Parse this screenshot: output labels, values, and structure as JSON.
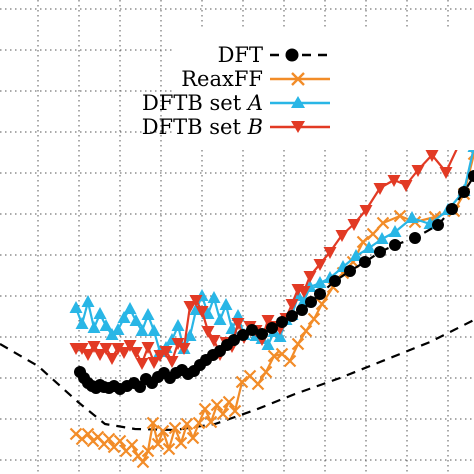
{
  "chart_data": {
    "type": "line",
    "title": "",
    "xlabel": "",
    "ylabel": "",
    "xlim": [
      0,
      47.4
    ],
    "ylim": [
      0,
      47.4
    ],
    "grid": true,
    "legend_position": "top-right",
    "series": [
      {
        "name": "DFT",
        "color": "#000000",
        "marker": "circle",
        "line_style": "dashed",
        "x": [
          8.0,
          8.4,
          8.8,
          9.2,
          9.6,
          10.0,
          10.4,
          10.9,
          11.4,
          12.0,
          12.7,
          13.4,
          14.0,
          14.6,
          15.2,
          15.8,
          16.4,
          17.0,
          17.6,
          18.2,
          18.8,
          19.4,
          20.0,
          20.6,
          21.3,
          22.0,
          22.7,
          23.4,
          24.3,
          25.2,
          26.2,
          27.2,
          28.2,
          29.2,
          30.2,
          31.1,
          32.0,
          33.5,
          35.0,
          36.5,
          38.0,
          39.5,
          41.5,
          43.8,
          45.2,
          46.4,
          47.4
        ],
        "y": [
          10.2,
          9.6,
          9.1,
          8.8,
          8.6,
          8.9,
          8.7,
          8.6,
          8.8,
          8.5,
          8.8,
          9.1,
          8.7,
          9.5,
          9.1,
          9.7,
          10.1,
          9.6,
          10.1,
          10.4,
          10.0,
          10.3,
          10.9,
          11.4,
          11.9,
          12.3,
          12.9,
          13.4,
          13.9,
          14.4,
          14.0,
          14.6,
          15.2,
          15.8,
          16.4,
          17.2,
          18.0,
          19.3,
          20.3,
          21.2,
          22.2,
          22.9,
          23.6,
          24.9,
          26.5,
          28.2,
          29.8
        ]
      },
      {
        "name": "ReaxFF",
        "color": "#f28c28",
        "marker": "x",
        "line_style": "solid",
        "x": [
          7.6,
          8.2,
          8.8,
          9.3,
          9.8,
          10.4,
          10.9,
          11.4,
          12.0,
          12.6,
          13.2,
          13.8,
          14.3,
          14.8,
          15.3,
          15.8,
          16.3,
          16.9,
          17.5,
          18.1,
          18.7,
          19.3,
          19.9,
          20.5,
          21.1,
          21.7,
          22.3,
          22.9,
          23.5,
          24.2,
          25.0,
          25.8,
          26.6,
          27.4,
          28.2,
          29.0,
          29.8,
          30.6,
          31.4,
          32.2,
          33.3,
          34.3,
          35.3,
          36.3,
          37.3,
          38.3,
          40.0,
          41.5,
          43.5,
          45.4,
          46.4,
          47.4
        ],
        "y": [
          4.0,
          3.5,
          4.0,
          3.3,
          3.7,
          3.0,
          3.5,
          2.7,
          3.3,
          2.3,
          2.9,
          1.8,
          1.2,
          2.3,
          5.1,
          3.0,
          4.3,
          2.5,
          4.6,
          3.1,
          5.0,
          3.6,
          5.1,
          6.5,
          5.2,
          6.9,
          6.0,
          7.2,
          6.3,
          9.2,
          9.8,
          9.0,
          10.2,
          11.8,
          12.0,
          11.3,
          13.0,
          14.3,
          15.5,
          17.0,
          18.7,
          20.1,
          21.2,
          23.2,
          24.0,
          25.1,
          25.8,
          25.2,
          25.7,
          26.3,
          28.0,
          32.0
        ]
      },
      {
        "name": "DFTB set A",
        "color": "#29b6e6",
        "marker": "triangle-up",
        "line_style": "solid",
        "x": [
          7.6,
          8.2,
          8.8,
          9.4,
          10.0,
          10.6,
          11.2,
          11.8,
          12.4,
          13.0,
          13.6,
          14.2,
          14.8,
          15.4,
          16.0,
          16.6,
          17.2,
          17.8,
          18.4,
          19.0,
          19.6,
          20.2,
          20.8,
          21.4,
          22.0,
          22.6,
          23.2,
          23.8,
          24.4,
          25.0,
          25.6,
          26.2,
          26.8,
          27.4,
          28.0,
          28.6,
          29.2,
          29.8,
          30.4,
          31.0,
          32.0,
          33.0,
          34.3,
          35.6,
          36.9,
          38.2,
          39.5,
          41.2,
          43.0,
          44.8,
          46.4,
          47.4
        ],
        "y": [
          16.6,
          15.0,
          17.2,
          14.6,
          16.0,
          14.8,
          13.9,
          14.4,
          15.6,
          16.5,
          15.3,
          14.3,
          15.9,
          14.3,
          12.2,
          12.6,
          13.4,
          14.8,
          12.5,
          13.8,
          16.4,
          17.8,
          16.0,
          17.6,
          15.4,
          16.9,
          14.5,
          15.8,
          13.9,
          14.5,
          13.8,
          13.5,
          12.9,
          14.2,
          13.7,
          15.4,
          15.9,
          17.8,
          17.3,
          18.7,
          19.1,
          19.6,
          20.7,
          21.8,
          22.6,
          23.5,
          24.2,
          25.6,
          25.0,
          26.4,
          28.3,
          32.7
        ]
      },
      {
        "name": "DFTB set B",
        "color": "#e23a24",
        "marker": "triangle-down",
        "line_style": "solid",
        "x": [
          7.6,
          8.2,
          8.8,
          9.4,
          10.0,
          10.6,
          11.2,
          11.8,
          12.4,
          13.0,
          13.6,
          14.2,
          14.8,
          15.4,
          16.0,
          16.6,
          17.2,
          17.8,
          18.4,
          19.0,
          19.6,
          20.2,
          20.8,
          21.4,
          22.0,
          22.6,
          23.2,
          23.8,
          24.4,
          25.0,
          25.6,
          26.2,
          26.8,
          27.4,
          28.0,
          28.6,
          29.2,
          29.8,
          30.4,
          31.0,
          32.0,
          33.0,
          34.2,
          35.4,
          36.6,
          38.0,
          39.4,
          40.6,
          41.8,
          43.2,
          44.6,
          46.2,
          47.4
        ],
        "y": [
          12.6,
          12.6,
          12.0,
          12.8,
          12.0,
          12.6,
          11.6,
          12.6,
          12.2,
          12.9,
          12.2,
          11.1,
          12.7,
          11.2,
          11.9,
          12.3,
          11.3,
          13.1,
          12.6,
          16.8,
          17.4,
          16.3,
          14.3,
          13.4,
          12.0,
          13.2,
          12.8,
          15.1,
          13.7,
          14.8,
          14.4,
          13.5,
          15.4,
          14.8,
          14.6,
          15.6,
          17.0,
          18.5,
          18.3,
          19.8,
          21.0,
          22.2,
          23.9,
          25.0,
          26.4,
          28.6,
          29.4,
          28.9,
          30.4,
          31.9,
          30.2,
          33.6,
          41.0
        ]
      },
      {
        "name": "",
        "color": "#000000",
        "marker": "none",
        "line_style": "dashed",
        "x": [
          0.0,
          3.8,
          7.8,
          10.5,
          13.5,
          17.5,
          21.5,
          25.5,
          29.5,
          34.0,
          38.5,
          43.0,
          47.4
        ],
        "y": [
          13.0,
          10.8,
          7.2,
          5.0,
          4.5,
          4.4,
          5.0,
          6.4,
          8.0,
          9.6,
          11.4,
          13.2,
          15.4
        ]
      }
    ]
  }
}
